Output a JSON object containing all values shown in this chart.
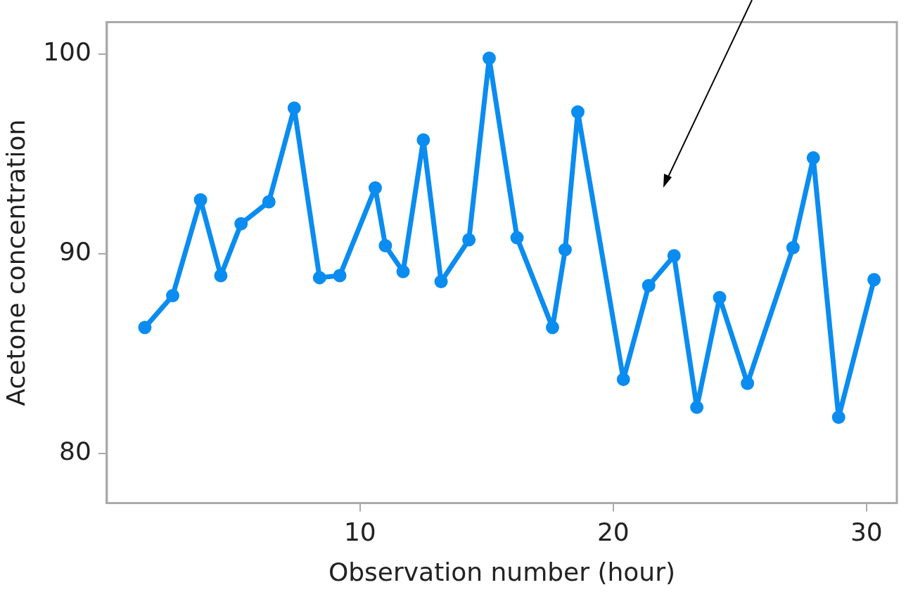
{
  "chart_data": {
    "type": "line",
    "xlabel": "Observation number (hour)",
    "ylabel": "Acetone concentration",
    "x": [
      1.5,
      2.6,
      3.7,
      4.5,
      5.3,
      6.4,
      7.4,
      8.4,
      9.2,
      10.6,
      11.0,
      11.7,
      12.5,
      13.2,
      14.3,
      15.1,
      16.2,
      17.6,
      18.1,
      18.6,
      20.4,
      21.4,
      22.4,
      23.3,
      24.2,
      25.3,
      27.1,
      27.9,
      28.9,
      30.3
    ],
    "series": [
      {
        "color": "#0a8cf0",
        "values": [
          86.3,
          87.9,
          92.7,
          88.9,
          91.5,
          92.6,
          97.3,
          88.8,
          88.9,
          93.3,
          90.4,
          89.1,
          95.7,
          88.6,
          90.7,
          99.8,
          90.8,
          86.3,
          90.2,
          97.1,
          83.7,
          88.4,
          89.9,
          82.3,
          87.8,
          83.5,
          90.3,
          94.8,
          81.8,
          88.7
        ]
      }
    ],
    "xlim": [
      0,
      31.2
    ],
    "xticks": [
      10,
      20,
      30
    ],
    "ylim": [
      77.5,
      101.6
    ],
    "yticks": [
      80,
      90,
      100
    ],
    "grid": false,
    "legend": false,
    "marker": "circle",
    "line_style": "solid"
  }
}
